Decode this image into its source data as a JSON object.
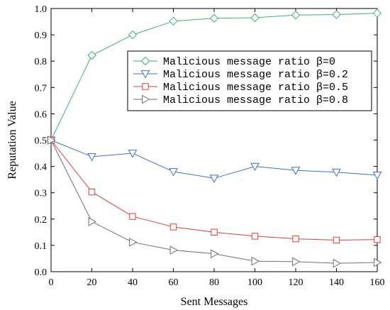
{
  "chart_data": {
    "type": "line",
    "xlabel": "Sent Messages",
    "ylabel": "Reputation Value",
    "xlim": [
      0,
      160
    ],
    "ylim": [
      0,
      1.0
    ],
    "xticks": [
      "0",
      "20",
      "40",
      "60",
      "80",
      "100",
      "120",
      "140",
      "160"
    ],
    "yticks": [
      "0.0",
      "0.1",
      "0.2",
      "0.3",
      "0.4",
      "0.5",
      "0.6",
      "0.7",
      "0.8",
      "0.9",
      "1.0"
    ],
    "grid": false,
    "legend_position": "upper-right",
    "x": [
      0,
      20,
      40,
      60,
      80,
      100,
      120,
      140,
      160
    ],
    "series": [
      {
        "name": "Malicious message ratio β=0",
        "color": "#3cb371",
        "marker": "diamond",
        "values": [
          0.5,
          0.822,
          0.9,
          0.952,
          0.963,
          0.965,
          0.975,
          0.977,
          0.982
        ]
      },
      {
        "name": "Malicious message ratio β=0.2",
        "color": "#3f6fd1",
        "marker": "triangle-down",
        "values": [
          0.5,
          0.437,
          0.45,
          0.38,
          0.355,
          0.4,
          0.385,
          0.378,
          0.367
        ]
      },
      {
        "name": "Malicious message ratio β=0.5",
        "color": "#e03c3c",
        "marker": "square",
        "values": [
          0.5,
          0.303,
          0.21,
          0.17,
          0.15,
          0.135,
          0.125,
          0.12,
          0.122
        ]
      },
      {
        "name": "Malicious message ratio β=0.8",
        "color": "#707070",
        "marker": "triangle-right",
        "values": [
          0.5,
          0.19,
          0.112,
          0.082,
          0.068,
          0.04,
          0.038,
          0.032,
          0.035
        ]
      }
    ]
  }
}
